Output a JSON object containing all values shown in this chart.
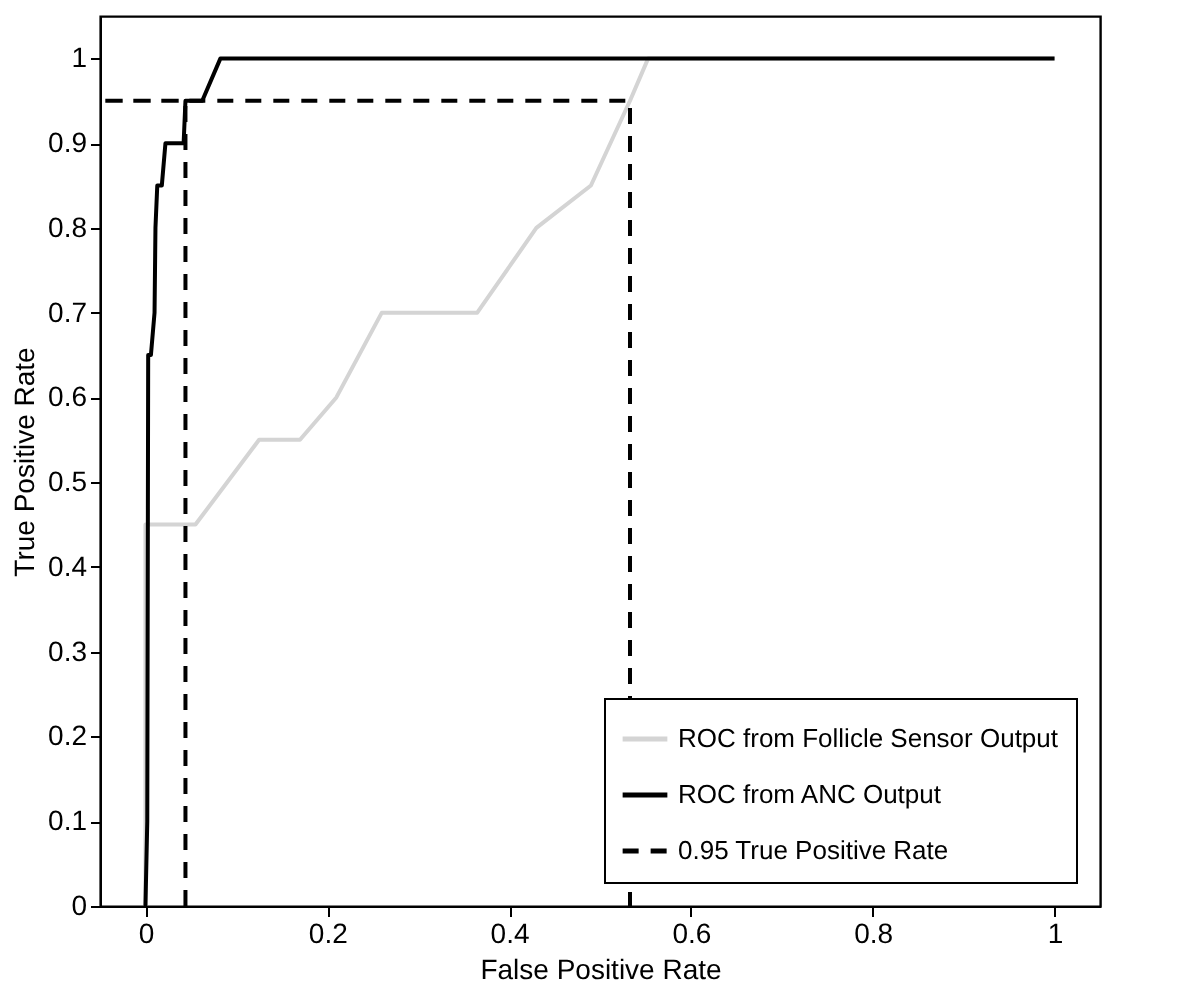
{
  "chart_data": {
    "type": "line",
    "xlabel": "False Positive Rate",
    "ylabel": "True Positive Rate",
    "xlim": [
      -0.05,
      1.05
    ],
    "ylim": [
      0,
      1.05
    ],
    "xticks": [
      0,
      0.2,
      0.4,
      0.6,
      0.8,
      1
    ],
    "yticks": [
      0,
      0.1,
      0.2,
      0.3,
      0.4,
      0.5,
      0.6,
      0.7,
      0.8,
      0.9,
      1
    ],
    "legend": "bottom right",
    "grid": false,
    "series": [
      {
        "name": "ROC from Follicle Sensor Output",
        "color": "#d4d4d4",
        "line_style": "solid",
        "x": [
          0,
          0,
          0.055,
          0.125,
          0.17,
          0.21,
          0.26,
          0.365,
          0.43,
          0.49,
          0.533,
          0.553,
          1
        ],
        "values": [
          0,
          0.45,
          0.45,
          0.55,
          0.55,
          0.6,
          0.7,
          0.7,
          0.8,
          0.85,
          0.95,
          1,
          1
        ]
      },
      {
        "name": "ROC from ANC Output",
        "color": "#000000",
        "line_style": "solid",
        "x": [
          0,
          0.002,
          0.003,
          0.006,
          0.01,
          0.011,
          0.013,
          0.018,
          0.022,
          0.042,
          0.044,
          0.0625,
          0.0825,
          1
        ],
        "values": [
          0,
          0.1,
          0.65,
          0.65,
          0.7,
          0.8,
          0.85,
          0.85,
          0.9,
          0.9,
          0.95,
          0.95,
          1,
          1
        ]
      },
      {
        "name": "0.95 True Positive Rate",
        "color": "#000000",
        "line_style": "dashed",
        "x": [
          0.044,
          0.044,
          -0.05,
          0.533,
          0.533
        ],
        "values": [
          0,
          0.95,
          0.95,
          0.95,
          0
        ]
      }
    ]
  }
}
